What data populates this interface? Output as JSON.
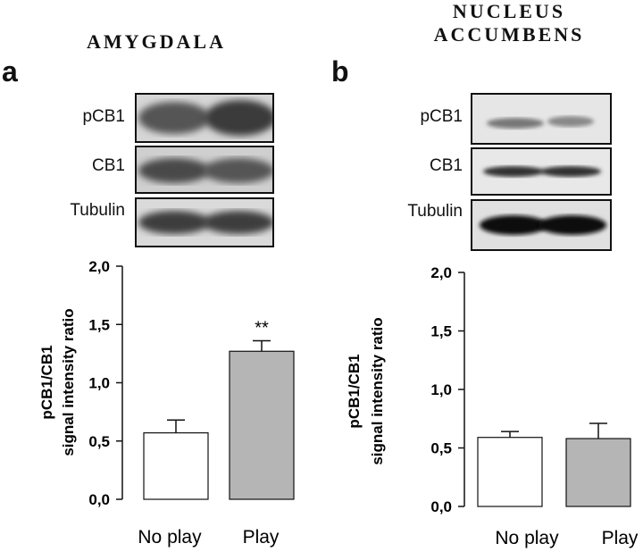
{
  "panels": [
    {
      "letter": "a",
      "region": "AMYGDALA",
      "bands": [
        "pCB1",
        "CB1",
        "Tubulin"
      ]
    },
    {
      "letter": "b",
      "region_line1": "NUCLEUS",
      "region_line2": "ACCUMBENS",
      "bands": [
        "pCB1",
        "CB1",
        "Tubulin"
      ]
    }
  ],
  "chart_data": [
    {
      "type": "bar",
      "panel": "a",
      "categories": [
        "No play",
        "Play"
      ],
      "values": [
        0.57,
        1.27
      ],
      "errors": [
        0.11,
        0.09
      ],
      "colors": [
        "#ffffff",
        "#b5b5b5"
      ],
      "annotations": [
        "",
        "**"
      ],
      "ylabel_line1": "pCB1/CB1",
      "ylabel_line2": "signal intensity ratio",
      "yticks": [
        "0,0",
        "0,5",
        "1,0",
        "1,5",
        "2,0"
      ],
      "ylim": [
        0,
        2.0
      ]
    },
    {
      "type": "bar",
      "panel": "b",
      "categories": [
        "No play",
        "Play"
      ],
      "values": [
        0.59,
        0.58
      ],
      "errors": [
        0.05,
        0.13
      ],
      "colors": [
        "#ffffff",
        "#b5b5b5"
      ],
      "annotations": [
        "",
        ""
      ],
      "ylabel_line1": "pCB1/CB1",
      "ylabel_line2": "signal intensity ratio",
      "yticks": [
        "0,0",
        "0,5",
        "1,0",
        "1,5",
        "2,0"
      ],
      "ylim": [
        0,
        2.0
      ]
    }
  ]
}
